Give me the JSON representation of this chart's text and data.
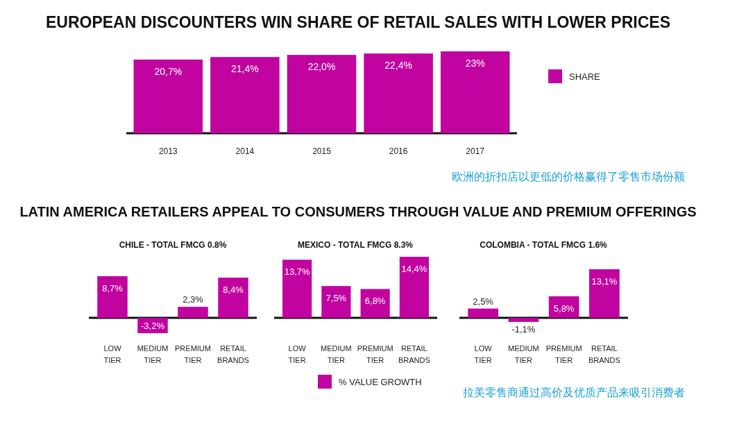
{
  "chart_data": [
    {
      "type": "bar",
      "title": "EUROPEAN DISCOUNTERS WIN SHARE OF RETAIL SALES WITH LOWER PRICES",
      "categories": [
        "2013",
        "2014",
        "2015",
        "2016",
        "2017"
      ],
      "series": [
        {
          "name": "SHARE",
          "color": "#c1049f",
          "values": [
            20.7,
            21.4,
            22.0,
            22.4,
            23
          ],
          "value_labels": [
            "20,7%",
            "21,4%",
            "22,0%",
            "22,4%",
            "23%"
          ]
        }
      ],
      "legend": "right",
      "annotations": [
        "欧洲的折扣店以更低的价格赢得了零售市场份额"
      ]
    },
    {
      "type": "other",
      "title": "LATIN AMERICA RETAILERS APPEAL TO CONSUMERS THROUGH VALUE AND PREMIUM OFFERINGS",
      "annotations": [
        "拉美零售商通过高价及优质产品来吸引消费者"
      ]
    },
    {
      "type": "bar",
      "title": "CHILE - TOTAL FMCG 0.8%",
      "categories": [
        "LOW TIER",
        "MEDIUM TIER",
        "PREMIUM TIER",
        "RETAIL BRANDS"
      ],
      "series": [
        {
          "color": "#c1049f",
          "values": [
            8.7,
            -3.2,
            2.3,
            8.4
          ],
          "value_labels": [
            "8,7%",
            "-3,2%",
            "2,3%",
            "8,4%"
          ]
        }
      ]
    },
    {
      "type": "bar",
      "title": "MEXICO - TOTAL FMCG 8.3%",
      "categories": [
        "LOW TIER",
        "MEDIUM TIER",
        "PREMIUM TIER",
        "RETAIL BRANDS"
      ],
      "series": [
        {
          "name": "% VALUE GROWTH",
          "color": "#c1049f",
          "values": [
            13.7,
            7.5,
            6.8,
            14.4
          ],
          "value_labels": [
            "13,7%",
            "7,5%",
            "6,8%",
            "14,4%"
          ]
        }
      ],
      "legend": "bottom"
    },
    {
      "type": "bar",
      "title": "COLOMBIA - TOTAL FMCG 1.6%",
      "categories": [
        "LOW TIER",
        "MEDIUM TIER",
        "PREMIUM TIER",
        "RETAIL BRANDS"
      ],
      "series": [
        {
          "color": "#c1049f",
          "values": [
            2.5,
            -1.1,
            5.8,
            13.1
          ],
          "value_labels": [
            "2,5%",
            "-1,1%",
            "5,8%",
            "13,1%"
          ]
        }
      ]
    }
  ]
}
